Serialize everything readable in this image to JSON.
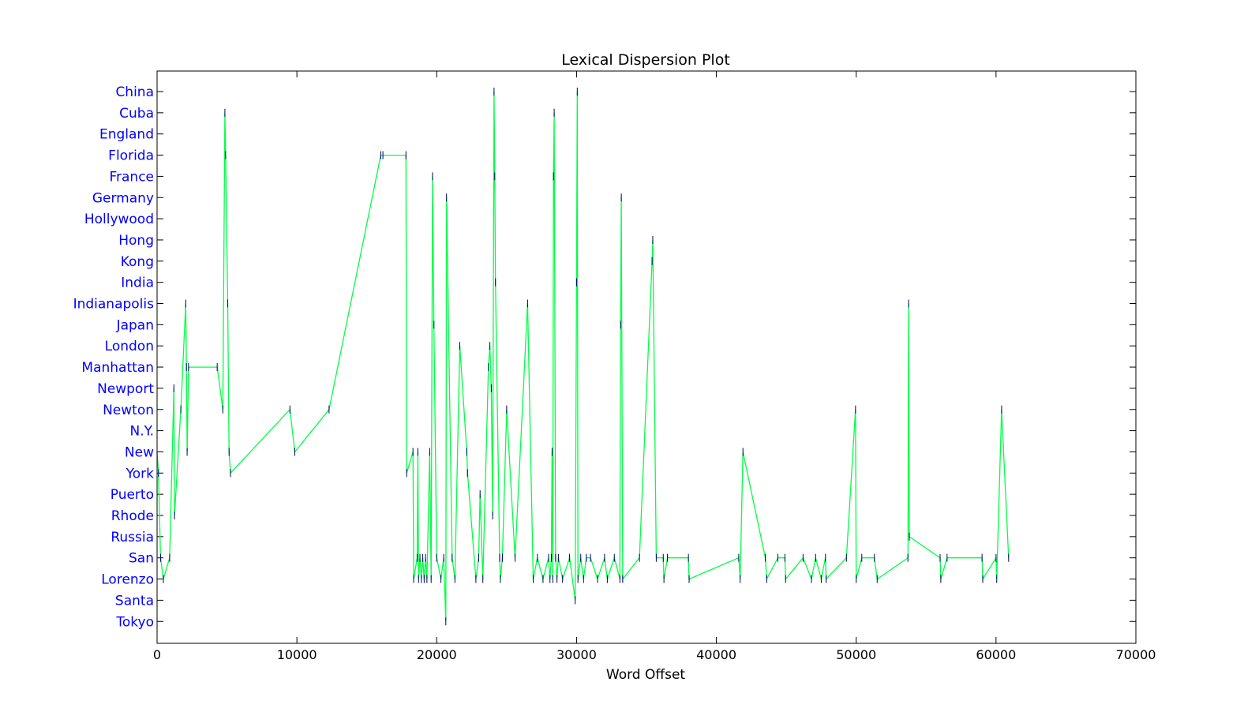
{
  "chart_data": {
    "type": "line",
    "title": "Lexical Dispersion Plot",
    "xlabel": "Word Offset",
    "ylabel": "",
    "xlim": [
      0,
      70000
    ],
    "x_ticks": [
      0,
      10000,
      20000,
      30000,
      40000,
      50000,
      60000,
      70000
    ],
    "x_tick_labels": [
      "0",
      "10000",
      "20000",
      "30000",
      "40000",
      "50000",
      "60000",
      "70000"
    ],
    "categories": [
      "China",
      "Cuba",
      "England",
      "Florida",
      "France",
      "Germany",
      "Hollywood",
      "Hong",
      "Kong",
      "India",
      "Indianapolis",
      "Japan",
      "London",
      "Manhattan",
      "Newport",
      "Newton",
      "N.Y.",
      "New",
      "York",
      "Puerto",
      "Rhode",
      "Russia",
      "San",
      "Lorenzo",
      "Santa",
      "Tokyo"
    ],
    "grid": false,
    "line_color": "#00ff44",
    "marker_color": "#000066",
    "label_color": "#0000ff",
    "series": [
      {
        "points": [
          [
            0,
            "New"
          ],
          [
            100,
            "York"
          ],
          [
            250,
            "San"
          ],
          [
            450,
            "Lorenzo"
          ],
          [
            900,
            "San"
          ],
          [
            1200,
            "Newport"
          ],
          [
            1250,
            "Rhode"
          ],
          [
            1700,
            "Newton"
          ],
          [
            2050,
            "Indianapolis"
          ],
          [
            2100,
            "Manhattan"
          ],
          [
            2150,
            "New"
          ],
          [
            2250,
            "Manhattan"
          ],
          [
            4300,
            "Manhattan"
          ],
          [
            4700,
            "Newton"
          ],
          [
            4850,
            "Cuba"
          ],
          [
            4900,
            "Florida"
          ],
          [
            5050,
            "Indianapolis"
          ],
          [
            5150,
            "New"
          ],
          [
            5250,
            "York"
          ],
          [
            9500,
            "Newton"
          ],
          [
            9850,
            "New"
          ],
          [
            12300,
            "Newton"
          ],
          [
            16000,
            "Florida"
          ],
          [
            16150,
            "Florida"
          ],
          [
            17800,
            "Florida"
          ],
          [
            17850,
            "York"
          ],
          [
            18300,
            "New"
          ],
          [
            18350,
            "Lorenzo"
          ],
          [
            18600,
            "San"
          ],
          [
            18650,
            "New"
          ],
          [
            18700,
            "Lorenzo"
          ],
          [
            18800,
            "San"
          ],
          [
            18900,
            "Lorenzo"
          ],
          [
            19000,
            "San"
          ],
          [
            19100,
            "Lorenzo"
          ],
          [
            19200,
            "San"
          ],
          [
            19300,
            "Lorenzo"
          ],
          [
            19500,
            "New"
          ],
          [
            19600,
            "Lorenzo"
          ],
          [
            19700,
            "France"
          ],
          [
            19800,
            "Japan"
          ],
          [
            20000,
            "San"
          ],
          [
            20300,
            "Lorenzo"
          ],
          [
            20500,
            "San"
          ],
          [
            20650,
            "Tokyo"
          ],
          [
            20700,
            "Germany"
          ],
          [
            21100,
            "San"
          ],
          [
            21300,
            "Lorenzo"
          ],
          [
            21650,
            "London"
          ],
          [
            22150,
            "New"
          ],
          [
            22200,
            "York"
          ],
          [
            22800,
            "Lorenzo"
          ],
          [
            23000,
            "San"
          ],
          [
            23100,
            "Puerto"
          ],
          [
            23300,
            "Lorenzo"
          ],
          [
            23700,
            "Manhattan"
          ],
          [
            23800,
            "London"
          ],
          [
            23900,
            "Newport"
          ],
          [
            24000,
            "Rhode"
          ],
          [
            24100,
            "China"
          ],
          [
            24150,
            "France"
          ],
          [
            24200,
            "India"
          ],
          [
            24500,
            "San"
          ],
          [
            24550,
            "Lorenzo"
          ],
          [
            24700,
            "San"
          ],
          [
            25000,
            "Newton"
          ],
          [
            25600,
            "San"
          ],
          [
            26500,
            "Indianapolis"
          ],
          [
            26900,
            "Lorenzo"
          ],
          [
            27200,
            "San"
          ],
          [
            27600,
            "Lorenzo"
          ],
          [
            28000,
            "San"
          ],
          [
            28100,
            "Lorenzo"
          ],
          [
            28200,
            "San"
          ],
          [
            28250,
            "New"
          ],
          [
            28300,
            "Lorenzo"
          ],
          [
            28350,
            "France"
          ],
          [
            28400,
            "Cuba"
          ],
          [
            28500,
            "San"
          ],
          [
            28600,
            "Lorenzo"
          ],
          [
            28700,
            "San"
          ],
          [
            29000,
            "Lorenzo"
          ],
          [
            29500,
            "San"
          ],
          [
            29900,
            "Santa"
          ],
          [
            30000,
            "India"
          ],
          [
            30050,
            "China"
          ],
          [
            30100,
            "Lorenzo"
          ],
          [
            30300,
            "San"
          ],
          [
            30500,
            "Lorenzo"
          ],
          [
            30700,
            "San"
          ],
          [
            31000,
            "San"
          ],
          [
            31500,
            "Lorenzo"
          ],
          [
            32000,
            "San"
          ],
          [
            32200,
            "Lorenzo"
          ],
          [
            32700,
            "San"
          ],
          [
            33100,
            "Lorenzo"
          ],
          [
            33150,
            "Japan"
          ],
          [
            33200,
            "Germany"
          ],
          [
            33300,
            "Lorenzo"
          ],
          [
            34500,
            "San"
          ],
          [
            35400,
            "Kong"
          ],
          [
            35450,
            "Hong"
          ],
          [
            35700,
            "San"
          ],
          [
            36200,
            "San"
          ],
          [
            36250,
            "Lorenzo"
          ],
          [
            36500,
            "San"
          ],
          [
            38000,
            "San"
          ],
          [
            38050,
            "Lorenzo"
          ],
          [
            41600,
            "San"
          ],
          [
            41700,
            "Lorenzo"
          ],
          [
            41900,
            "New"
          ],
          [
            43500,
            "San"
          ],
          [
            43600,
            "Lorenzo"
          ],
          [
            44400,
            "San"
          ],
          [
            44900,
            "San"
          ],
          [
            44950,
            "Lorenzo"
          ],
          [
            46200,
            "San"
          ],
          [
            46800,
            "Lorenzo"
          ],
          [
            47100,
            "San"
          ],
          [
            47500,
            "Lorenzo"
          ],
          [
            47800,
            "San"
          ],
          [
            47850,
            "Lorenzo"
          ],
          [
            49300,
            "San"
          ],
          [
            49950,
            "Newton"
          ],
          [
            50000,
            "Lorenzo"
          ],
          [
            50400,
            "San"
          ],
          [
            51300,
            "San"
          ],
          [
            51500,
            "Lorenzo"
          ],
          [
            53700,
            "San"
          ],
          [
            53750,
            "Indianapolis"
          ],
          [
            53800,
            "Russia"
          ],
          [
            56000,
            "San"
          ],
          [
            56050,
            "Lorenzo"
          ],
          [
            56500,
            "San"
          ],
          [
            59000,
            "San"
          ],
          [
            59050,
            "Lorenzo"
          ],
          [
            60000,
            "San"
          ],
          [
            60050,
            "Lorenzo"
          ],
          [
            60400,
            "Newton"
          ],
          [
            60900,
            "San"
          ]
        ]
      }
    ]
  }
}
